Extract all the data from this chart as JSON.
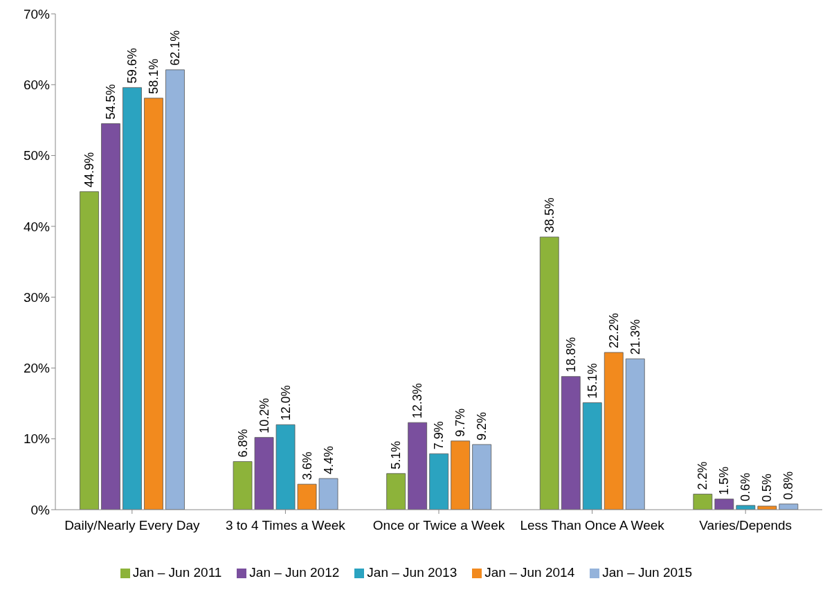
{
  "chart_data": {
    "type": "bar",
    "categories": [
      "Daily/Nearly Every Day",
      "3 to 4 Times a Week",
      "Once or Twice a Week",
      "Less Than Once A Week",
      "Varies/Depends"
    ],
    "series": [
      {
        "name": "Jan – Jun 2011",
        "color": "#8db33a",
        "values": [
          44.9,
          6.8,
          5.1,
          38.5,
          2.2
        ],
        "value_labels": [
          "44.9%",
          "6.8%",
          "5.1%",
          "38.5%",
          "2.2%"
        ]
      },
      {
        "name": "Jan – Jun 2012",
        "color": "#7a4f9e",
        "values": [
          54.5,
          10.2,
          12.3,
          18.8,
          1.5
        ],
        "value_labels": [
          "54.5%",
          "10.2%",
          "12.3%",
          "18.8%",
          "1.5%"
        ]
      },
      {
        "name": "Jan – Jun 2013",
        "color": "#2ba3c0",
        "values": [
          59.6,
          12.0,
          7.9,
          15.1,
          0.6
        ],
        "value_labels": [
          "59.6%",
          "12.0%",
          "7.9%",
          "15.1%",
          "0.6%"
        ]
      },
      {
        "name": "Jan – Jun 2014",
        "color": "#f28a1e",
        "values": [
          58.1,
          3.6,
          9.7,
          22.2,
          0.5
        ],
        "value_labels": [
          "58.1%",
          "3.6%",
          "9.7%",
          "22.2%",
          "0.5%"
        ]
      },
      {
        "name": "Jan – Jun 2015",
        "color": "#94b3db",
        "values": [
          62.1,
          4.4,
          9.2,
          21.3,
          0.8
        ],
        "value_labels": [
          "62.1%",
          "4.4%",
          "9.2%",
          "21.3%",
          "0.8%"
        ]
      }
    ],
    "ylim": [
      0,
      70
    ],
    "yticks": [
      {
        "value": 0,
        "label": "0%"
      },
      {
        "value": 10,
        "label": "10%"
      },
      {
        "value": 20,
        "label": "20%"
      },
      {
        "value": 30,
        "label": "30%"
      },
      {
        "value": 40,
        "label": "40%"
      },
      {
        "value": 50,
        "label": "50%"
      },
      {
        "value": 60,
        "label": "60%"
      },
      {
        "value": 70,
        "label": "70%"
      }
    ],
    "grid": false,
    "legend": "bottom"
  }
}
